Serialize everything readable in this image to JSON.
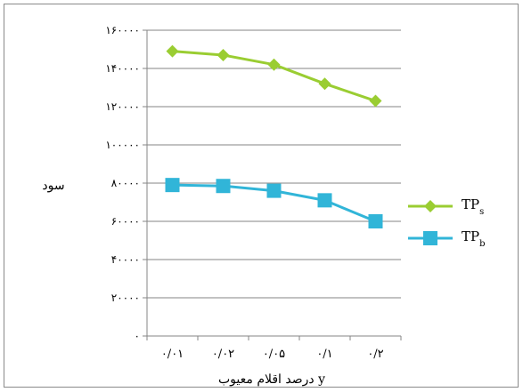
{
  "chart_data": {
    "type": "line",
    "categories": [
      "۰/۰۱",
      "۰/۰۲",
      "۰/۰۵",
      "۰/۱",
      "۰/۲"
    ],
    "x": [
      0.01,
      0.02,
      0.05,
      0.1,
      0.2
    ],
    "series": [
      {
        "key": "s",
        "name_main": "TP",
        "name_sub": "s",
        "color": "#9acd32",
        "marker": "diamond",
        "values": [
          149000,
          147000,
          142000,
          132000,
          123000
        ]
      },
      {
        "key": "b",
        "name_main": "TP",
        "name_sub": "b",
        "color": "#31b5d8",
        "marker": "square",
        "values": [
          79000,
          78500,
          76000,
          71000,
          60000
        ]
      }
    ],
    "ylim": [
      0,
      160000
    ],
    "yticks": [
      0,
      20000,
      40000,
      60000,
      80000,
      100000,
      120000,
      140000,
      160000
    ],
    "ytick_labels": [
      "۰",
      "۲۰۰۰۰",
      "۴۰۰۰۰",
      "۶۰۰۰۰",
      "۸۰۰۰۰",
      "۱۰۰۰۰۰",
      "۱۲۰۰۰۰",
      "۱۴۰۰۰۰",
      "۱۶۰۰۰۰"
    ],
    "xlabel": "درصد اقلام معیوب y",
    "ylabel": "سود",
    "grid": "horizontal",
    "legend": "right"
  }
}
